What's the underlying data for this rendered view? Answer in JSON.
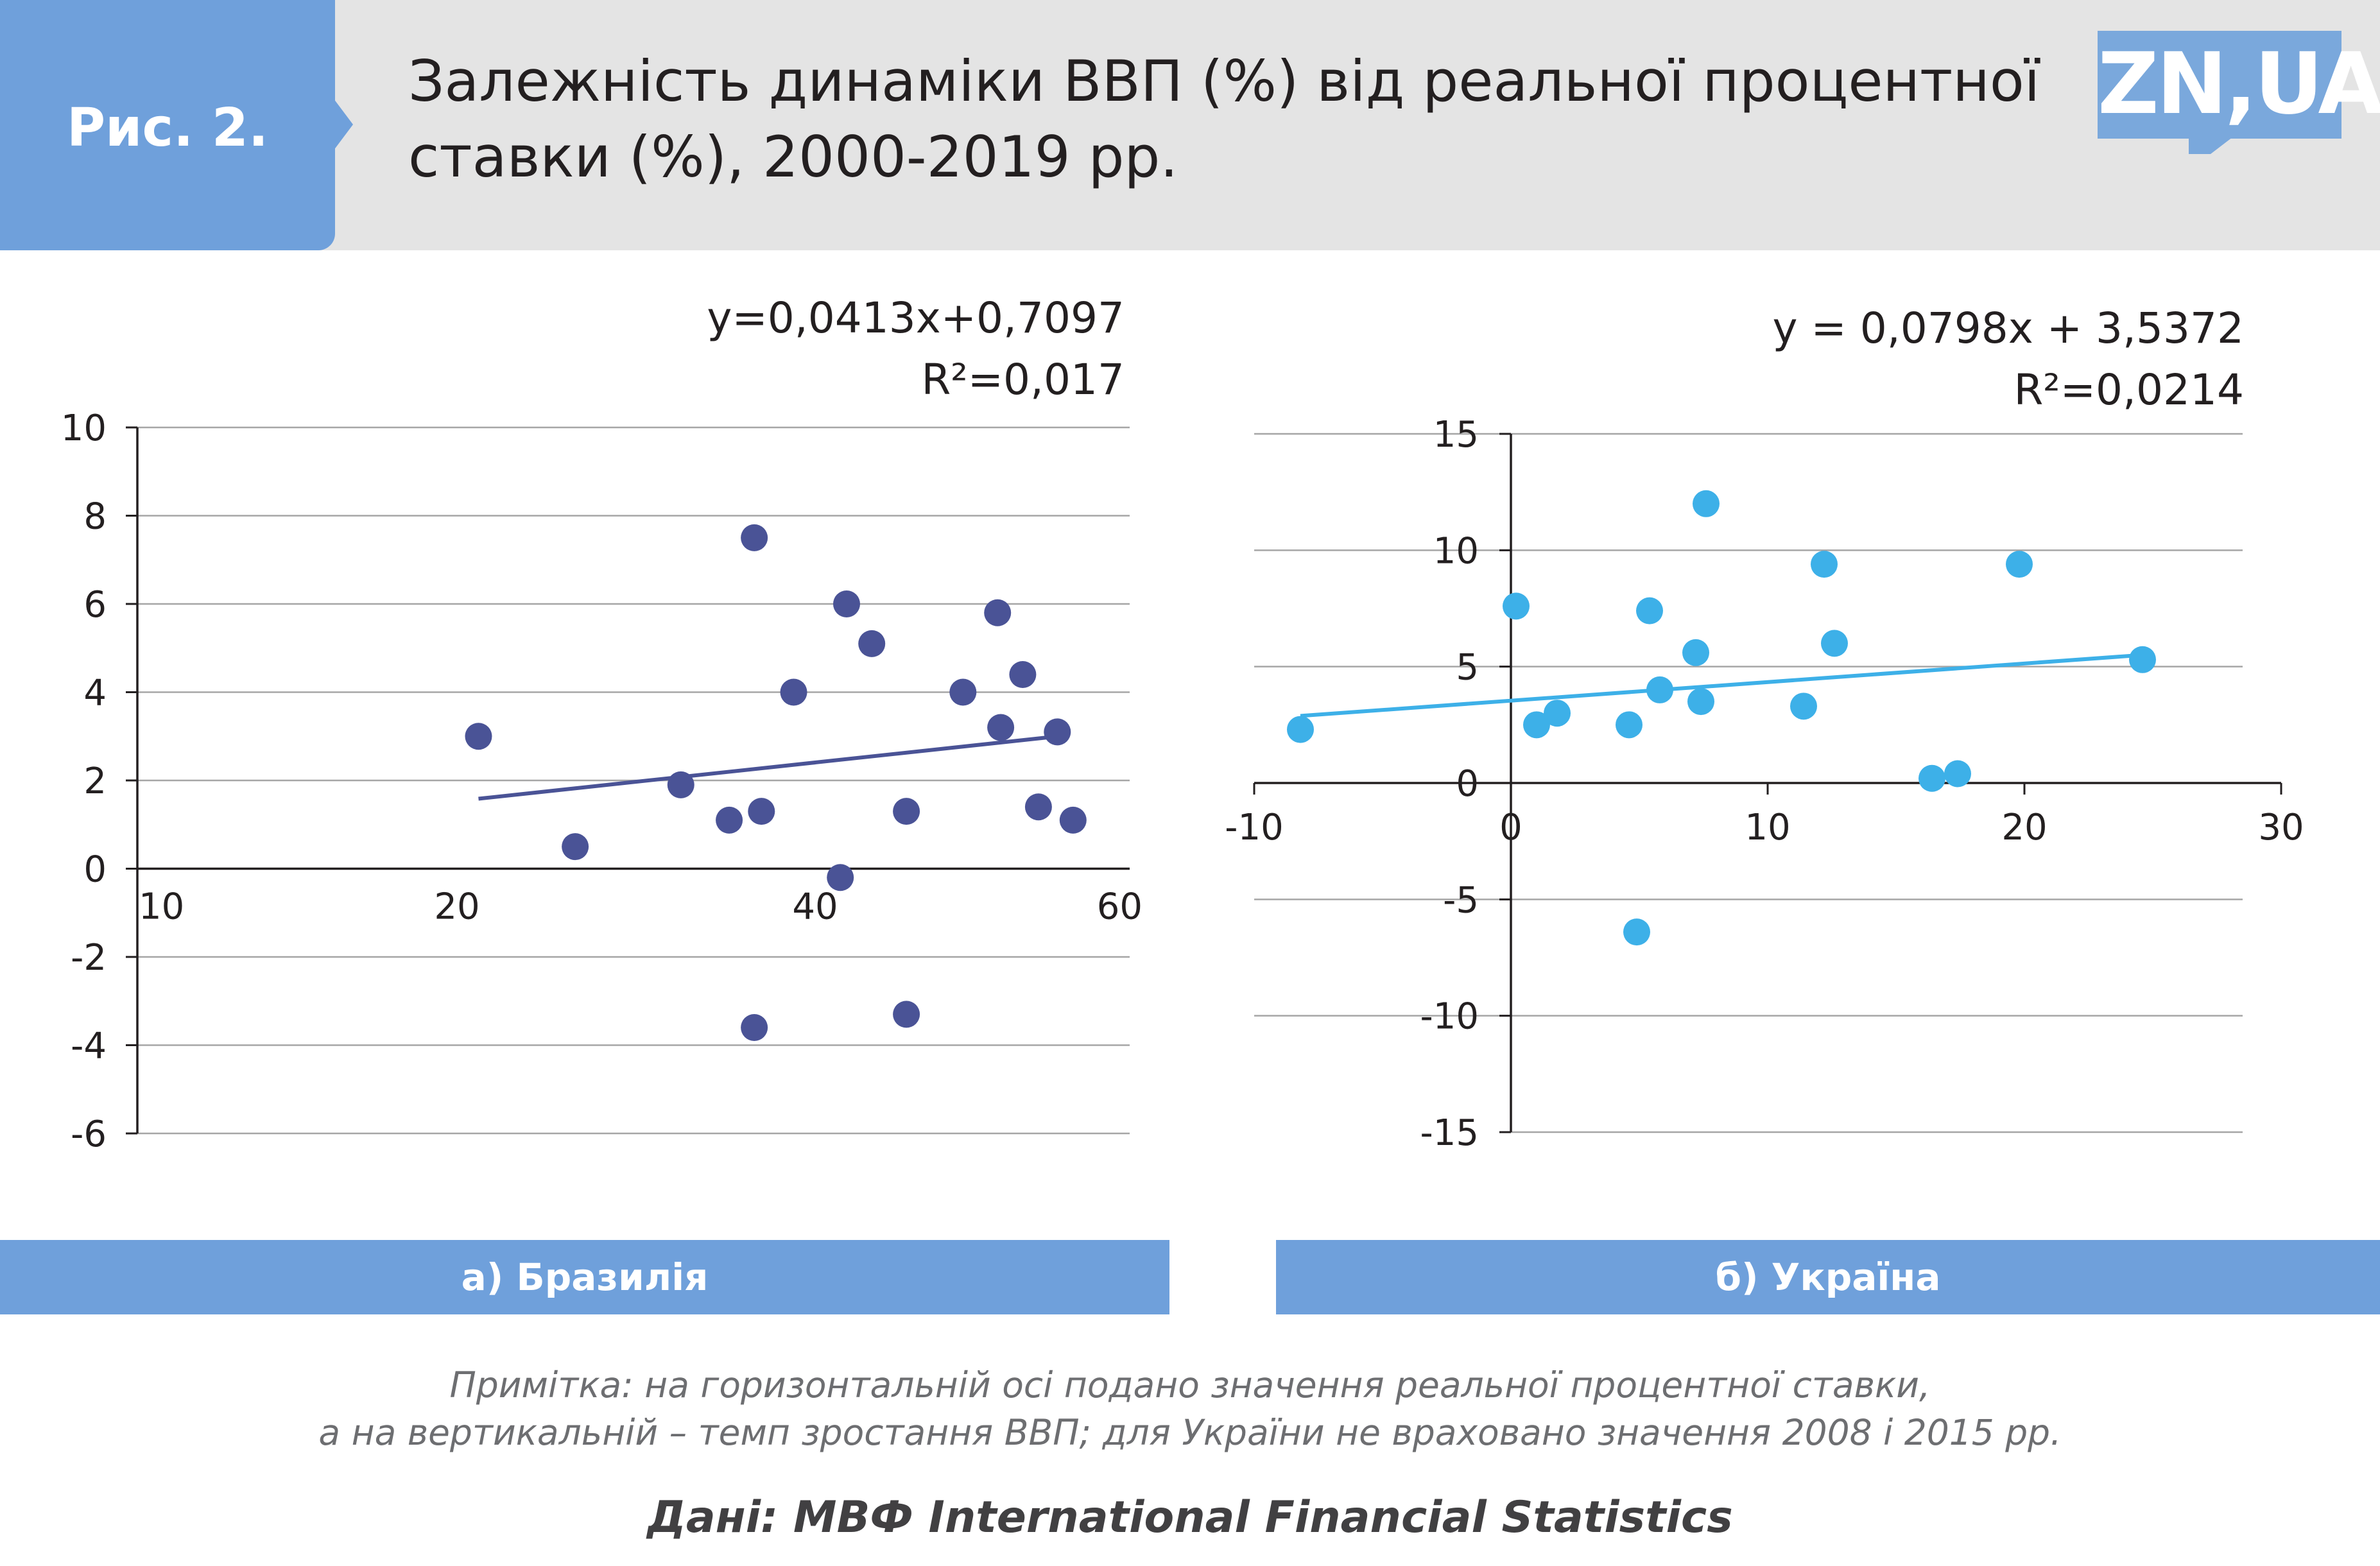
{
  "header": {
    "figure_label": "Рис. 2.",
    "title_line_1": "Залежність динаміки ВВП (%) від реальної процентної",
    "title_line_2": "ставки (%),  2000-2019 рр.",
    "logo_text": "ZN,UA"
  },
  "colors": {
    "header_background": "#e4e4e4",
    "accent_blue": "#6fa0db",
    "brazil_series": "#4a5396",
    "ukraine_series": "#3db0e8",
    "gridline": "#a6a6a6"
  },
  "chart_data": [
    {
      "type": "scatter",
      "equation": "y=0,0413x+0,7097",
      "r_squared": "R²=0,017",
      "caption": "а) Бразилія",
      "x_ticks": [
        "10",
        "20",
        "40",
        "60"
      ],
      "y_ticks": [
        "10",
        "8",
        "6",
        "4",
        "2",
        "0",
        "-2",
        "-4",
        "-6"
      ],
      "ylim": [
        -6,
        10
      ],
      "grid": true,
      "trendline": {
        "slope": 0.0413,
        "intercept": 0.7097,
        "x_range": [
          21.2,
          55.4
        ]
      },
      "points": [
        {
          "x": 21.2,
          "y": 3.0
        },
        {
          "x": 26.6,
          "y": 0.5
        },
        {
          "x": 32.5,
          "y": 1.9
        },
        {
          "x": 35.2,
          "y": 1.1
        },
        {
          "x": 36.6,
          "y": 7.5
        },
        {
          "x": 36.6,
          "y": -3.6
        },
        {
          "x": 37.0,
          "y": 1.3
        },
        {
          "x": 38.8,
          "y": 4.0
        },
        {
          "x": 41.6,
          "y": -0.2
        },
        {
          "x": 42.0,
          "y": 6.0
        },
        {
          "x": 43.6,
          "y": 5.1
        },
        {
          "x": 45.8,
          "y": 1.3
        },
        {
          "x": 45.8,
          "y": -3.3
        },
        {
          "x": 49.4,
          "y": 4.0
        },
        {
          "x": 51.6,
          "y": 5.8
        },
        {
          "x": 51.8,
          "y": 3.2
        },
        {
          "x": 53.2,
          "y": 4.4
        },
        {
          "x": 54.2,
          "y": 1.4
        },
        {
          "x": 55.4,
          "y": 3.1
        },
        {
          "x": 56.4,
          "y": 1.1
        }
      ]
    },
    {
      "type": "scatter",
      "equation": "y = 0,0798x + 3,5372",
      "r_squared": "R²=0,0214",
      "caption": "б) Україна",
      "x_ticks": [
        "-10",
        "0",
        "10",
        "20",
        "30"
      ],
      "y_ticks": [
        "15",
        "10",
        "5",
        "0",
        "-5",
        "-10",
        "-15"
      ],
      "xlim": [
        -10,
        30
      ],
      "ylim": [
        -15,
        15
      ],
      "grid": true,
      "trendline": {
        "slope": 0.0798,
        "intercept": 3.5372,
        "x_range": [
          -8.2,
          24.6
        ]
      },
      "points": [
        {
          "x": -8.2,
          "y": 2.3
        },
        {
          "x": 0.2,
          "y": 7.6
        },
        {
          "x": 1.0,
          "y": 2.5
        },
        {
          "x": 1.8,
          "y": 3.0
        },
        {
          "x": 4.6,
          "y": 2.5
        },
        {
          "x": 4.9,
          "y": -6.4
        },
        {
          "x": 5.4,
          "y": 7.4
        },
        {
          "x": 5.8,
          "y": 4.0
        },
        {
          "x": 7.2,
          "y": 5.6
        },
        {
          "x": 7.4,
          "y": 3.5
        },
        {
          "x": 7.6,
          "y": 12.0
        },
        {
          "x": 11.4,
          "y": 3.3
        },
        {
          "x": 12.2,
          "y": 9.4
        },
        {
          "x": 12.6,
          "y": 6.0
        },
        {
          "x": 16.4,
          "y": 0.2
        },
        {
          "x": 17.4,
          "y": 0.4
        },
        {
          "x": 19.8,
          "y": 9.4
        },
        {
          "x": 24.6,
          "y": 5.3
        }
      ]
    }
  ],
  "note": {
    "line_1": "Примітка: на горизонтальній осі подано значення реальної процентної ставки,",
    "line_2": "а на вертикальній – темп зростання ВВП; для України не враховано значення 2008 і 2015 рр."
  },
  "source": "Дані: МВФ International Financial Statistics"
}
